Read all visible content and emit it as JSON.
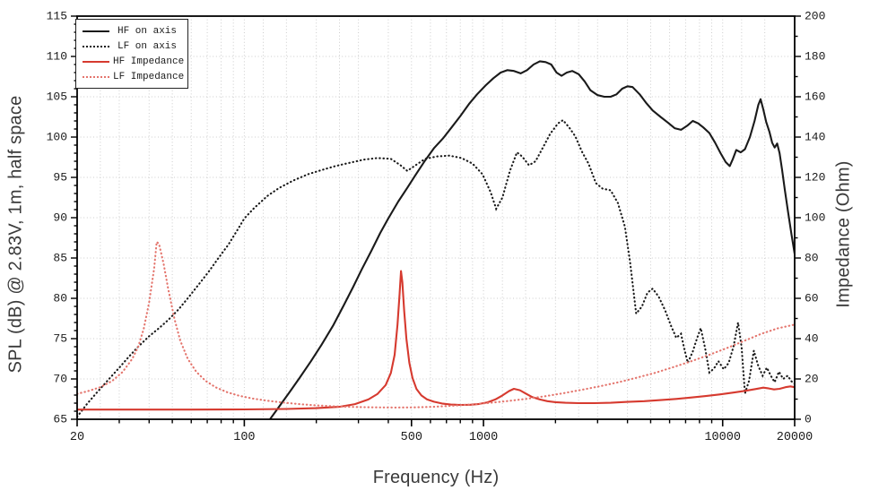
{
  "chart_data": {
    "type": "line",
    "x_axis": {
      "label": "Frequency (Hz)",
      "scale": "log",
      "min": 20,
      "max": 20000,
      "major_ticks": [
        20,
        100,
        500,
        1000,
        10000,
        20000
      ],
      "tick_labels": [
        "20",
        "100",
        "500",
        "1000",
        "10000",
        "20000"
      ]
    },
    "y_left": {
      "label": "SPL (dB) @ 2.83V, 1m, half space",
      "min": 65,
      "max": 115,
      "major_step": 5,
      "minor_step": 1,
      "ticks": [
        65,
        70,
        75,
        80,
        85,
        90,
        95,
        100,
        105,
        110,
        115
      ]
    },
    "y_right": {
      "label": "Impedance (Ohm)",
      "min": 0,
      "max": 200,
      "major_step": 20,
      "minor_step": 10,
      "ticks": [
        0,
        20,
        40,
        60,
        80,
        100,
        120,
        140,
        160,
        180,
        200
      ]
    },
    "grid": {
      "on": true,
      "color": "#cccccc",
      "x_minor_mantissas": [
        1.2,
        1.5,
        2,
        2.5,
        3,
        4,
        5,
        6,
        7,
        8,
        9,
        10
      ]
    },
    "legend": {
      "position": "top-left",
      "entries": [
        "HF on axis",
        "LF on axis",
        "HF Impedance",
        "LF Impedance"
      ]
    },
    "colors": {
      "black_curve": "#1a1a1a",
      "red_solid": "#d63a2f",
      "red_dotted": "#e4756d"
    },
    "series": [
      {
        "name": "HF on axis",
        "axis": "left",
        "color": "#1a1a1a",
        "style": "solid",
        "points": [
          [
            128,
            65
          ],
          [
            140,
            66.6
          ],
          [
            155,
            68.4
          ],
          [
            170,
            70.1
          ],
          [
            190,
            72.2
          ],
          [
            210,
            74.2
          ],
          [
            235,
            76.6
          ],
          [
            260,
            79.1
          ],
          [
            285,
            81.4
          ],
          [
            310,
            83.6
          ],
          [
            340,
            85.9
          ],
          [
            370,
            88.1
          ],
          [
            400,
            89.9
          ],
          [
            440,
            92
          ],
          [
            480,
            93.7
          ],
          [
            520,
            95.3
          ],
          [
            570,
            97.1
          ],
          [
            620,
            98.6
          ],
          [
            680,
            99.9
          ],
          [
            740,
            101.3
          ],
          [
            800,
            102.6
          ],
          [
            870,
            104.1
          ],
          [
            940,
            105.3
          ],
          [
            1020,
            106.4
          ],
          [
            1100,
            107.3
          ],
          [
            1180,
            108
          ],
          [
            1260,
            108.3
          ],
          [
            1340,
            108.2
          ],
          [
            1430,
            107.9
          ],
          [
            1520,
            108.3
          ],
          [
            1620,
            109
          ],
          [
            1720,
            109.4
          ],
          [
            1820,
            109.3
          ],
          [
            1920,
            109
          ],
          [
            2020,
            108
          ],
          [
            2120,
            107.6
          ],
          [
            2230,
            108
          ],
          [
            2350,
            108.2
          ],
          [
            2500,
            107.8
          ],
          [
            2650,
            106.9
          ],
          [
            2800,
            105.8
          ],
          [
            3000,
            105.2
          ],
          [
            3200,
            105
          ],
          [
            3400,
            105
          ],
          [
            3600,
            105.3
          ],
          [
            3800,
            106
          ],
          [
            4000,
            106.3
          ],
          [
            4200,
            106.2
          ],
          [
            4500,
            105.3
          ],
          [
            4800,
            104.2
          ],
          [
            5100,
            103.3
          ],
          [
            5500,
            102.5
          ],
          [
            5900,
            101.8
          ],
          [
            6300,
            101.1
          ],
          [
            6700,
            100.9
          ],
          [
            7100,
            101.4
          ],
          [
            7500,
            102
          ],
          [
            7900,
            101.7
          ],
          [
            8300,
            101.2
          ],
          [
            8800,
            100.5
          ],
          [
            9300,
            99.3
          ],
          [
            9800,
            98
          ],
          [
            10300,
            96.9
          ],
          [
            10700,
            96.4
          ],
          [
            11000,
            97.2
          ],
          [
            11400,
            98.4
          ],
          [
            11900,
            98.1
          ],
          [
            12400,
            98.5
          ],
          [
            13000,
            100
          ],
          [
            13600,
            102
          ],
          [
            14100,
            104
          ],
          [
            14400,
            104.7
          ],
          [
            14800,
            103.4
          ],
          [
            15200,
            101.9
          ],
          [
            15700,
            100.6
          ],
          [
            16100,
            99.3
          ],
          [
            16500,
            98.7
          ],
          [
            16900,
            99.2
          ],
          [
            17300,
            98
          ],
          [
            17700,
            96
          ],
          [
            18200,
            93.4
          ],
          [
            18800,
            90.6
          ],
          [
            19400,
            87.9
          ],
          [
            20000,
            85.5
          ]
        ]
      },
      {
        "name": "LF on axis",
        "axis": "left",
        "color": "#1a1a1a",
        "style": "dotted",
        "points": [
          [
            20,
            65.3
          ],
          [
            22,
            66.9
          ],
          [
            24,
            68.2
          ],
          [
            27,
            69.9
          ],
          [
            30,
            71.4
          ],
          [
            33,
            72.8
          ],
          [
            36,
            74
          ],
          [
            40,
            75.3
          ],
          [
            44,
            76.3
          ],
          [
            48,
            77.3
          ],
          [
            53,
            78.6
          ],
          [
            58,
            80
          ],
          [
            64,
            81.6
          ],
          [
            71,
            83.3
          ],
          [
            78,
            85
          ],
          [
            86,
            86.7
          ],
          [
            95,
            88.8
          ],
          [
            100,
            89.9
          ],
          [
            110,
            91.2
          ],
          [
            125,
            92.7
          ],
          [
            140,
            93.7
          ],
          [
            160,
            94.6
          ],
          [
            185,
            95.4
          ],
          [
            210,
            95.9
          ],
          [
            240,
            96.4
          ],
          [
            275,
            96.8
          ],
          [
            315,
            97.2
          ],
          [
            360,
            97.4
          ],
          [
            410,
            97.3
          ],
          [
            450,
            96.5
          ],
          [
            480,
            95.8
          ],
          [
            520,
            96.5
          ],
          [
            570,
            97.3
          ],
          [
            640,
            97.6
          ],
          [
            720,
            97.7
          ],
          [
            810,
            97.4
          ],
          [
            900,
            96.7
          ],
          [
            990,
            95.4
          ],
          [
            1070,
            93.2
          ],
          [
            1130,
            91.1
          ],
          [
            1200,
            92.5
          ],
          [
            1290,
            95.8
          ],
          [
            1380,
            98.1
          ],
          [
            1450,
            97.6
          ],
          [
            1550,
            96.5
          ],
          [
            1650,
            97
          ],
          [
            1780,
            98.8
          ],
          [
            1900,
            100.4
          ],
          [
            2050,
            101.7
          ],
          [
            2150,
            102.1
          ],
          [
            2280,
            101.2
          ],
          [
            2420,
            100.1
          ],
          [
            2580,
            98.2
          ],
          [
            2750,
            96.7
          ],
          [
            2950,
            94.3
          ],
          [
            3150,
            93.6
          ],
          [
            3400,
            93.4
          ],
          [
            3650,
            91.8
          ],
          [
            3900,
            88.9
          ],
          [
            4100,
            84.5
          ],
          [
            4350,
            78.1
          ],
          [
            4600,
            79
          ],
          [
            4850,
            80.7
          ],
          [
            5100,
            81.2
          ],
          [
            5400,
            80.2
          ],
          [
            5750,
            78.5
          ],
          [
            6100,
            76.5
          ],
          [
            6400,
            75.1
          ],
          [
            6700,
            75.6
          ],
          [
            6900,
            73.8
          ],
          [
            7150,
            72
          ],
          [
            7500,
            73.4
          ],
          [
            7800,
            75
          ],
          [
            8100,
            76.3
          ],
          [
            8450,
            73.8
          ],
          [
            8800,
            70.8
          ],
          [
            9200,
            71.3
          ],
          [
            9600,
            72.2
          ],
          [
            10100,
            71.2
          ],
          [
            10600,
            72
          ],
          [
            11100,
            74
          ],
          [
            11600,
            77
          ],
          [
            12000,
            74
          ],
          [
            12400,
            68.2
          ],
          [
            12900,
            69.8
          ],
          [
            13500,
            73.5
          ],
          [
            14100,
            71.6
          ],
          [
            14700,
            70.4
          ],
          [
            15300,
            71.4
          ],
          [
            15900,
            70.4
          ],
          [
            16500,
            69.6
          ],
          [
            17200,
            70.9
          ],
          [
            17900,
            70
          ],
          [
            18700,
            70.4
          ],
          [
            19400,
            69.7
          ],
          [
            20000,
            69.4
          ]
        ]
      },
      {
        "name": "HF Impedance",
        "axis": "right",
        "color": "#d63a2f",
        "style": "solid",
        "points": [
          [
            20,
            4.8
          ],
          [
            60,
            4.8
          ],
          [
            100,
            4.9
          ],
          [
            150,
            5.1
          ],
          [
            200,
            5.5
          ],
          [
            250,
            6.2
          ],
          [
            290,
            7.5
          ],
          [
            330,
            9.8
          ],
          [
            360,
            12.5
          ],
          [
            390,
            17
          ],
          [
            410,
            23
          ],
          [
            425,
            32
          ],
          [
            437,
            47
          ],
          [
            446,
            62
          ],
          [
            452,
            73.5
          ],
          [
            458,
            68
          ],
          [
            466,
            54
          ],
          [
            476,
            40
          ],
          [
            490,
            28
          ],
          [
            505,
            20.5
          ],
          [
            525,
            15
          ],
          [
            550,
            11.8
          ],
          [
            580,
            9.9
          ],
          [
            620,
            8.7
          ],
          [
            670,
            7.8
          ],
          [
            730,
            7.3
          ],
          [
            800,
            7.1
          ],
          [
            880,
            7.2
          ],
          [
            960,
            7.6
          ],
          [
            1040,
            8.4
          ],
          [
            1120,
            9.8
          ],
          [
            1200,
            11.8
          ],
          [
            1280,
            14
          ],
          [
            1340,
            15.1
          ],
          [
            1420,
            14.4
          ],
          [
            1500,
            12.8
          ],
          [
            1600,
            11
          ],
          [
            1720,
            9.8
          ],
          [
            1850,
            9
          ],
          [
            2000,
            8.5
          ],
          [
            2200,
            8.2
          ],
          [
            2500,
            8
          ],
          [
            2900,
            8
          ],
          [
            3400,
            8.2
          ],
          [
            4000,
            8.6
          ],
          [
            4700,
            9
          ],
          [
            5500,
            9.5
          ],
          [
            6400,
            10.1
          ],
          [
            7400,
            10.8
          ],
          [
            8500,
            11.5
          ],
          [
            9700,
            12.3
          ],
          [
            11000,
            13.2
          ],
          [
            12400,
            14.1
          ],
          [
            13700,
            15
          ],
          [
            14800,
            15.7
          ],
          [
            15600,
            15.3
          ],
          [
            16400,
            14.8
          ],
          [
            17300,
            15.1
          ],
          [
            18300,
            15.9
          ],
          [
            19200,
            16.3
          ],
          [
            20000,
            15.9
          ]
        ]
      },
      {
        "name": "LF Impedance",
        "axis": "right",
        "color": "#e4756d",
        "style": "dotted",
        "points": [
          [
            20,
            12.6
          ],
          [
            22,
            13.8
          ],
          [
            25,
            15.9
          ],
          [
            28,
            19
          ],
          [
            31,
            23.5
          ],
          [
            34,
            30
          ],
          [
            36,
            36
          ],
          [
            38,
            45
          ],
          [
            40,
            58
          ],
          [
            42,
            75
          ],
          [
            43,
            88
          ],
          [
            44,
            87
          ],
          [
            46,
            77
          ],
          [
            48,
            65
          ],
          [
            51,
            50
          ],
          [
            54,
            39
          ],
          [
            58,
            30
          ],
          [
            63,
            23.5
          ],
          [
            69,
            19
          ],
          [
            76,
            15.8
          ],
          [
            85,
            13.4
          ],
          [
            95,
            11.7
          ],
          [
            108,
            10.3
          ],
          [
            125,
            9.2
          ],
          [
            145,
            8.3
          ],
          [
            170,
            7.5
          ],
          [
            200,
            6.9
          ],
          [
            240,
            6.4
          ],
          [
            290,
            6.1
          ],
          [
            350,
            5.9
          ],
          [
            430,
            5.8
          ],
          [
            520,
            5.9
          ],
          [
            620,
            6.2
          ],
          [
            740,
            6.7
          ],
          [
            880,
            7.3
          ],
          [
            1050,
            8.1
          ],
          [
            1250,
            9
          ],
          [
            1500,
            10.1
          ],
          [
            1800,
            11.4
          ],
          [
            2150,
            12.9
          ],
          [
            2600,
            14.7
          ],
          [
            3100,
            16.5
          ],
          [
            3700,
            18.5
          ],
          [
            4400,
            20.7
          ],
          [
            5200,
            23
          ],
          [
            6200,
            25.8
          ],
          [
            7400,
            28.8
          ],
          [
            8800,
            32
          ],
          [
            10400,
            35.3
          ],
          [
            12300,
            38.9
          ],
          [
            14500,
            42.4
          ],
          [
            17000,
            45.1
          ],
          [
            20000,
            47
          ]
        ]
      }
    ]
  }
}
